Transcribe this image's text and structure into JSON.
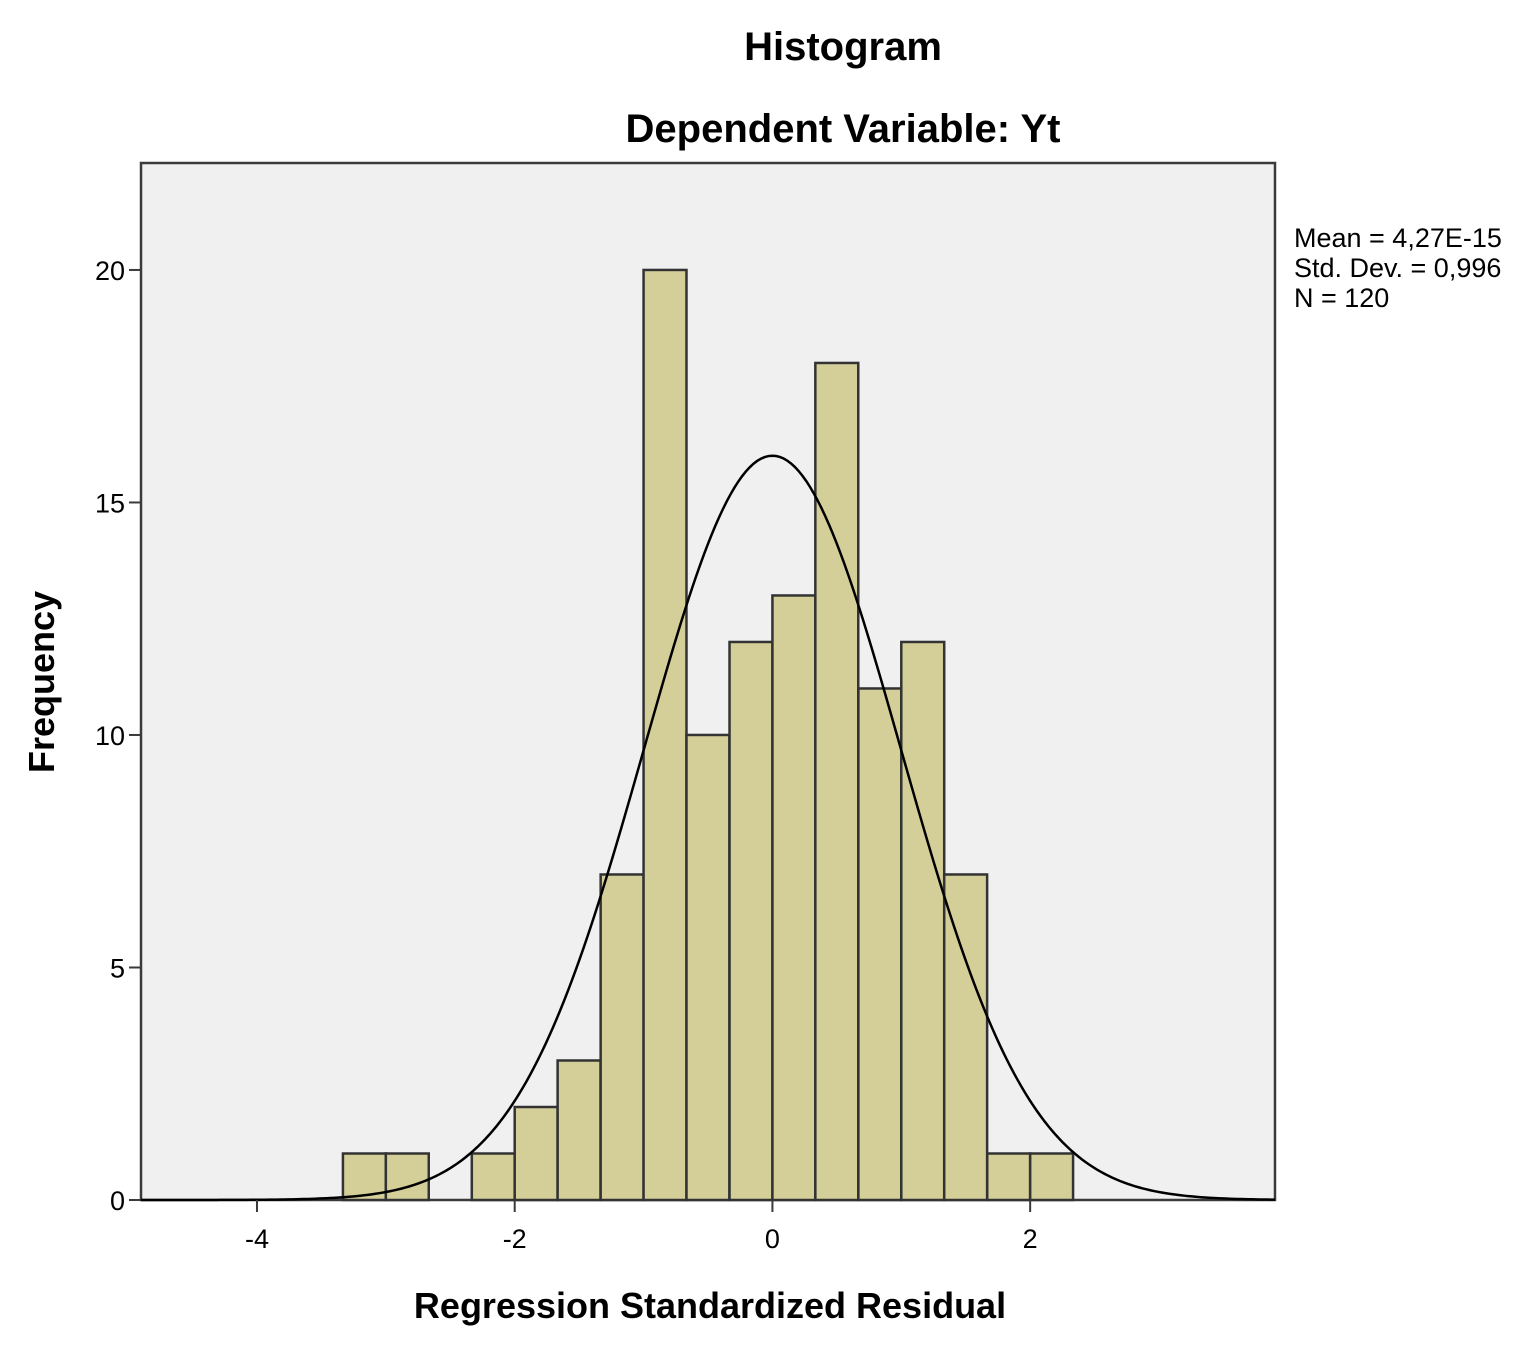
{
  "chart_data": {
    "type": "bar",
    "title": "Histogram",
    "subtitle": "Dependent Variable: Yt",
    "xlabel": "Regression Standardized Residual",
    "ylabel": "Frequency",
    "xlim": [
      -4.9,
      3.9
    ],
    "ylim": [
      0,
      22.3
    ],
    "x_ticks": [
      -4,
      -2,
      0,
      2
    ],
    "x_tick_labels": [
      "-4",
      "-2",
      "0",
      "2"
    ],
    "y_ticks": [
      0,
      5,
      10,
      15,
      20
    ],
    "y_tick_labels": [
      "0",
      "5",
      "10",
      "15",
      "20"
    ],
    "bin_width": 0.333,
    "bins": [
      {
        "start": -3.333,
        "value": 1
      },
      {
        "start": -3.0,
        "value": 1
      },
      {
        "start": -2.333,
        "value": 1
      },
      {
        "start": -2.0,
        "value": 2
      },
      {
        "start": -1.667,
        "value": 3
      },
      {
        "start": -1.333,
        "value": 7
      },
      {
        "start": -1.0,
        "value": 20
      },
      {
        "start": -0.667,
        "value": 10
      },
      {
        "start": -0.333,
        "value": 12
      },
      {
        "start": 0.0,
        "value": 13
      },
      {
        "start": 0.333,
        "value": 18
      },
      {
        "start": 0.667,
        "value": 11
      },
      {
        "start": 1.0,
        "value": 12
      },
      {
        "start": 1.333,
        "value": 7
      },
      {
        "start": 1.667,
        "value": 1
      },
      {
        "start": 2.0,
        "value": 1
      }
    ],
    "normal_curve": {
      "mean": 0,
      "std": 0.996,
      "n": 120
    },
    "stats": {
      "mean": "Mean = 4,27E-15",
      "std_dev": "Std. Dev. = 0,996",
      "n": "N = 120"
    },
    "grid": false,
    "legend": "none"
  }
}
